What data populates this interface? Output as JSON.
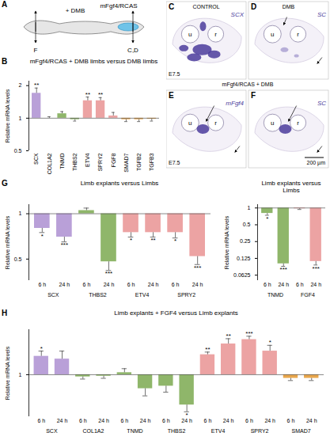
{
  "panels": {
    "A": {
      "letter": "A",
      "labels": [
        "+ DMB",
        "mFgf4/RCAS",
        "F",
        "C,D"
      ]
    },
    "C": {
      "letter": "C",
      "title": "CONTROL",
      "probe": "SCX",
      "stage": "E7.5",
      "labels": [
        "u",
        "r"
      ]
    },
    "D": {
      "letter": "D",
      "title": "DMB",
      "probe": "SC",
      "labels": [
        "u",
        "r"
      ]
    },
    "E": {
      "letter": "E",
      "probe": "mFgf4",
      "stage": "E7.5",
      "labels": [
        "u",
        "r"
      ]
    },
    "F": {
      "letter": "F",
      "probe": "SC",
      "scale_bar": "200 µm",
      "labels": [
        "u",
        "r"
      ]
    },
    "EF_title": "mFgf4/RCAS + DMB"
  },
  "chart_data": [
    {
      "letter": "B",
      "type": "bar",
      "title": "mFgf4/RCAS + DMB limbs versus DMB limbs",
      "y_label": "Relative mRNA levels",
      "log": "y",
      "ylim": [
        0.5,
        2.2
      ],
      "yticks": [
        0.5,
        1,
        2
      ],
      "baseline": 1,
      "categories": [
        "SCX",
        "COL1A2",
        "TNMD",
        "THBS2",
        "ETV4",
        "SPRY2",
        "FGF8",
        "SMAD7",
        "TGFB2",
        "TGFB3"
      ],
      "values": [
        1.7,
        1.0,
        1.1,
        0.97,
        1.45,
        1.45,
        1.05,
        0.97,
        0.97,
        0.98
      ],
      "errors": [
        0.2,
        0.03,
        0.05,
        0.03,
        0.12,
        0.1,
        0.08,
        0.04,
        0.04,
        0.04
      ],
      "stars": [
        "**",
        null,
        null,
        null,
        "**",
        "**",
        null,
        null,
        null,
        null
      ],
      "colors": [
        "#b9a0d8",
        "#8fb66a",
        "#8fb66a",
        "#8fb66a",
        "#eca3a3",
        "#eca3a3",
        "#eca3a3",
        "#e8a64c",
        "#e8a64c",
        "#e8a64c"
      ]
    },
    {
      "letter": "G",
      "type": "bar",
      "title": "Limb explants versus Limbs",
      "y_label": "Relative mRNA levels",
      "log": "y",
      "ylim": [
        0.36,
        1.15
      ],
      "yticks": [
        0.5,
        1
      ],
      "baseline": 1,
      "groups": [
        "SCX",
        "THBS2",
        "ETV4",
        "SPRY2"
      ],
      "categories": [
        "6 h",
        "24 h"
      ],
      "values": [
        [
          0.8,
          0.7
        ],
        [
          1.05,
          0.48
        ],
        [
          0.75,
          0.75
        ],
        [
          0.75,
          0.52
        ]
      ],
      "errors": [
        [
          0.05,
          0.05
        ],
        [
          0.04,
          0.06
        ],
        [
          0.05,
          0.05
        ],
        [
          0.06,
          0.06
        ]
      ],
      "stars": [
        [
          "*",
          "***"
        ],
        [
          null,
          "***"
        ],
        [
          "*",
          "**"
        ],
        [
          "*",
          "***"
        ]
      ],
      "colors": [
        "#b9a0d8",
        "#8fb66a",
        "#eca3a3",
        "#eca3a3"
      ]
    },
    {
      "type": "bar",
      "title": "Limb explants versus Limbs",
      "y_label": "Relative mRNA levels",
      "log": "y",
      "ylim": [
        0.05,
        1.15
      ],
      "yticks": [
        0.0625,
        0.125,
        0.25,
        0.5,
        1
      ],
      "baseline": 1,
      "groups": [
        "TNMD",
        "FGF4"
      ],
      "categories": [
        "6 h",
        "24 h"
      ],
      "values": [
        [
          0.8,
          0.1
        ],
        [
          0.97,
          0.11
        ]
      ],
      "errors": [
        [
          0.06,
          0.01
        ],
        [
          0.03,
          0.015
        ]
      ],
      "stars": [
        [
          "*",
          "***"
        ],
        [
          null,
          "***"
        ]
      ],
      "colors": [
        "#8fb66a",
        "#eca3a3"
      ]
    },
    {
      "letter": "H",
      "type": "bar",
      "title": "Limb explants + FGF4 versus Limb explants",
      "y_label": "Relative mRNA levels",
      "log": "y",
      "ylim": [
        0.55,
        1.9
      ],
      "yticks": [
        1
      ],
      "baseline": 1,
      "groups": [
        "SCX",
        "COL1A2",
        "TNMD",
        "THBS2",
        "ETV4",
        "SPRY2",
        "SMAD7"
      ],
      "categories": [
        "6 h",
        "24 h"
      ],
      "values": [
        [
          1.3,
          1.25
        ],
        [
          0.97,
          0.98
        ],
        [
          1.03,
          0.82
        ],
        [
          0.85,
          0.65
        ],
        [
          1.33,
          1.55
        ],
        [
          1.65,
          1.4
        ],
        [
          0.95,
          0.95
        ]
      ],
      "errors": [
        [
          0.1,
          0.15
        ],
        [
          0.03,
          0.03
        ],
        [
          0.06,
          0.08
        ],
        [
          0.07,
          0.06
        ],
        [
          0.05,
          0.12
        ],
        [
          0.08,
          0.12
        ],
        [
          0.03,
          0.03
        ]
      ],
      "stars": [
        [
          "*",
          null
        ],
        [
          null,
          null
        ],
        [
          null,
          null
        ],
        [
          null,
          "*"
        ],
        [
          "**",
          "**"
        ],
        [
          "***",
          "*"
        ],
        [
          null,
          null
        ]
      ],
      "colors": [
        "#b9a0d8",
        "#8fb66a",
        "#8fb66a",
        "#8fb66a",
        "#eca3a3",
        "#eca3a3",
        "#e8a64c"
      ]
    }
  ]
}
